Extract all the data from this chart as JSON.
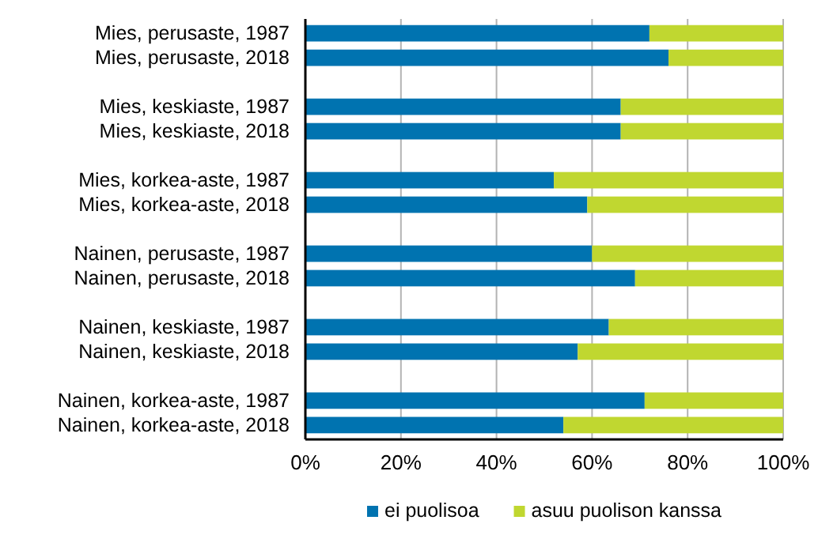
{
  "chart_data": {
    "type": "bar",
    "orientation": "horizontal",
    "stacked": true,
    "categories": [
      "Mies, perusaste, 1987",
      "Mies, perusaste, 2018",
      null,
      "Mies, keskiaste, 1987",
      "Mies, keskiaste, 2018",
      null,
      "Mies, korkea-aste, 1987",
      "Mies, korkea-aste, 2018",
      null,
      "Nainen, perusaste, 1987",
      "Nainen, perusaste, 2018",
      null,
      "Nainen, keskiaste, 1987",
      "Nainen, keskiaste, 2018",
      null,
      "Nainen, korkea-aste, 1987",
      "Nainen, korkea-aste, 2018"
    ],
    "series": [
      {
        "name": "ei puolisoa",
        "color": "#0073b0",
        "values": [
          72,
          76,
          null,
          66,
          66,
          null,
          52,
          59,
          null,
          60,
          69,
          null,
          63.5,
          57,
          null,
          71,
          54
        ]
      },
      {
        "name": "asuu puolison kanssa",
        "color": "#c0d730",
        "values": [
          28,
          24,
          null,
          34,
          34,
          null,
          48,
          41,
          null,
          40,
          31,
          null,
          36.5,
          43,
          null,
          29,
          46
        ]
      }
    ],
    "xlim": [
      0,
      100
    ],
    "xticks": [
      {
        "value": 0,
        "label": "0%"
      },
      {
        "value": 20,
        "label": "20%"
      },
      {
        "value": 40,
        "label": "40%"
      },
      {
        "value": 60,
        "label": "60%"
      },
      {
        "value": 80,
        "label": "80%"
      },
      {
        "value": 100,
        "label": "100%"
      }
    ],
    "grid": "x",
    "legend": "bottom"
  }
}
